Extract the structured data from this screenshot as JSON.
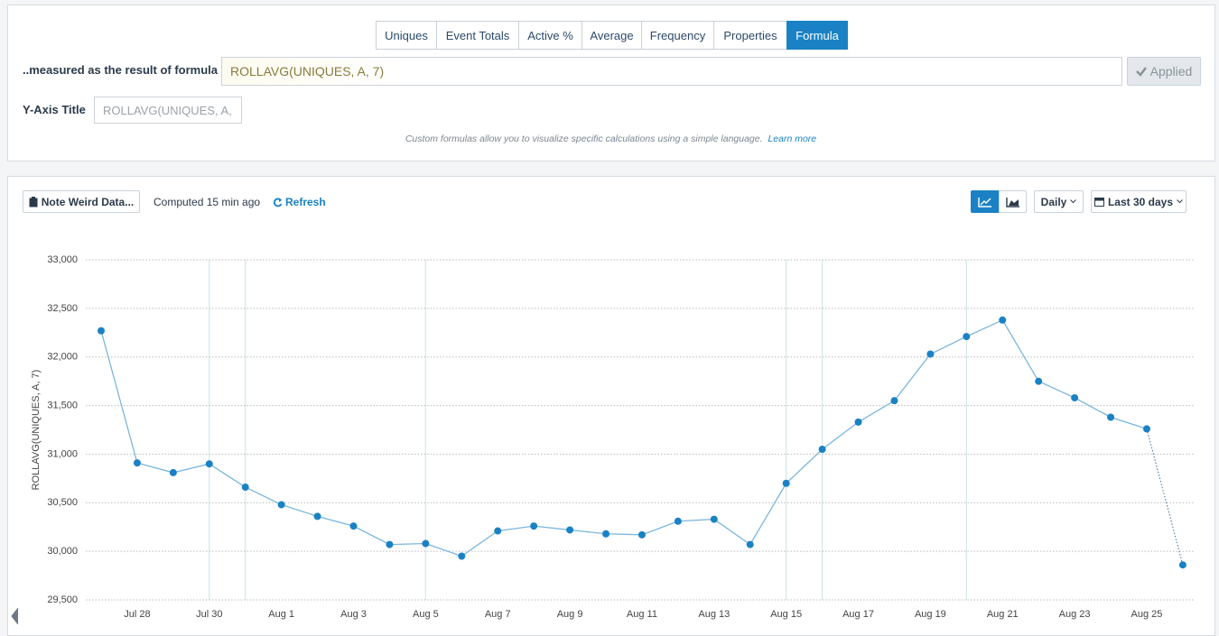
{
  "tabs": [
    "Uniques",
    "Event Totals",
    "Active %",
    "Average",
    "Frequency",
    "Properties",
    "Formula"
  ],
  "active_tab": 6,
  "formula": {
    "label": "..measured as the result of formula",
    "value": "ROLLAVG(UNIQUES, A, 7)",
    "button": "Applied"
  },
  "y_axis_title": {
    "label": "Y-Axis Title",
    "placeholder": "ROLLAVG(UNIQUES, A,"
  },
  "hint": {
    "text": "Custom formulas allow you to visualize specific calculations using a simple language.",
    "link": "Learn more"
  },
  "toolbar": {
    "note": "Note Weird Data...",
    "computed": "Computed 15 min ago",
    "refresh": "Refresh",
    "interval": "Daily",
    "range": "Last 30 days"
  },
  "chart_data": {
    "type": "line",
    "y_label": "ROLLAVG(UNIQUES, A, 7)",
    "categories": [
      null,
      "Jul 28",
      null,
      "Jul 30",
      null,
      "Aug 1",
      null,
      "Aug 3",
      null,
      "Aug 5",
      null,
      "Aug 7",
      null,
      "Aug 9",
      null,
      "Aug 11",
      null,
      "Aug 13",
      null,
      "Aug 15",
      null,
      "Aug 17",
      null,
      "Aug 19",
      null,
      "Aug 21",
      null,
      "Aug 23",
      null,
      "Aug 25",
      null
    ],
    "series": [
      {
        "name": "ROLLAVG(UNIQUES, A, 7)",
        "color": "#1a82c4",
        "values": [
          32270,
          30910,
          30810,
          30900,
          30660,
          30480,
          30360,
          30260,
          30070,
          30080,
          29950,
          30210,
          30260,
          30220,
          30180,
          30170,
          30310,
          30330,
          30070,
          30700,
          31050,
          31330,
          31550,
          32030,
          32210,
          32380,
          31750,
          31580,
          31380,
          31260,
          29860
        ]
      }
    ],
    "last_point_dotted": true,
    "ylim": [
      29500,
      33000
    ],
    "yticks": [
      {
        "value": 29500,
        "label": "29,500"
      },
      {
        "value": 30000,
        "label": "30,000"
      },
      {
        "value": 30500,
        "label": "30,500"
      },
      {
        "value": 31000,
        "label": "31,000"
      },
      {
        "value": 31500,
        "label": "31,500"
      },
      {
        "value": 32000,
        "label": "32,000"
      },
      {
        "value": 32500,
        "label": "32,500"
      },
      {
        "value": 33000,
        "label": "33,000"
      }
    ],
    "grid": true
  }
}
